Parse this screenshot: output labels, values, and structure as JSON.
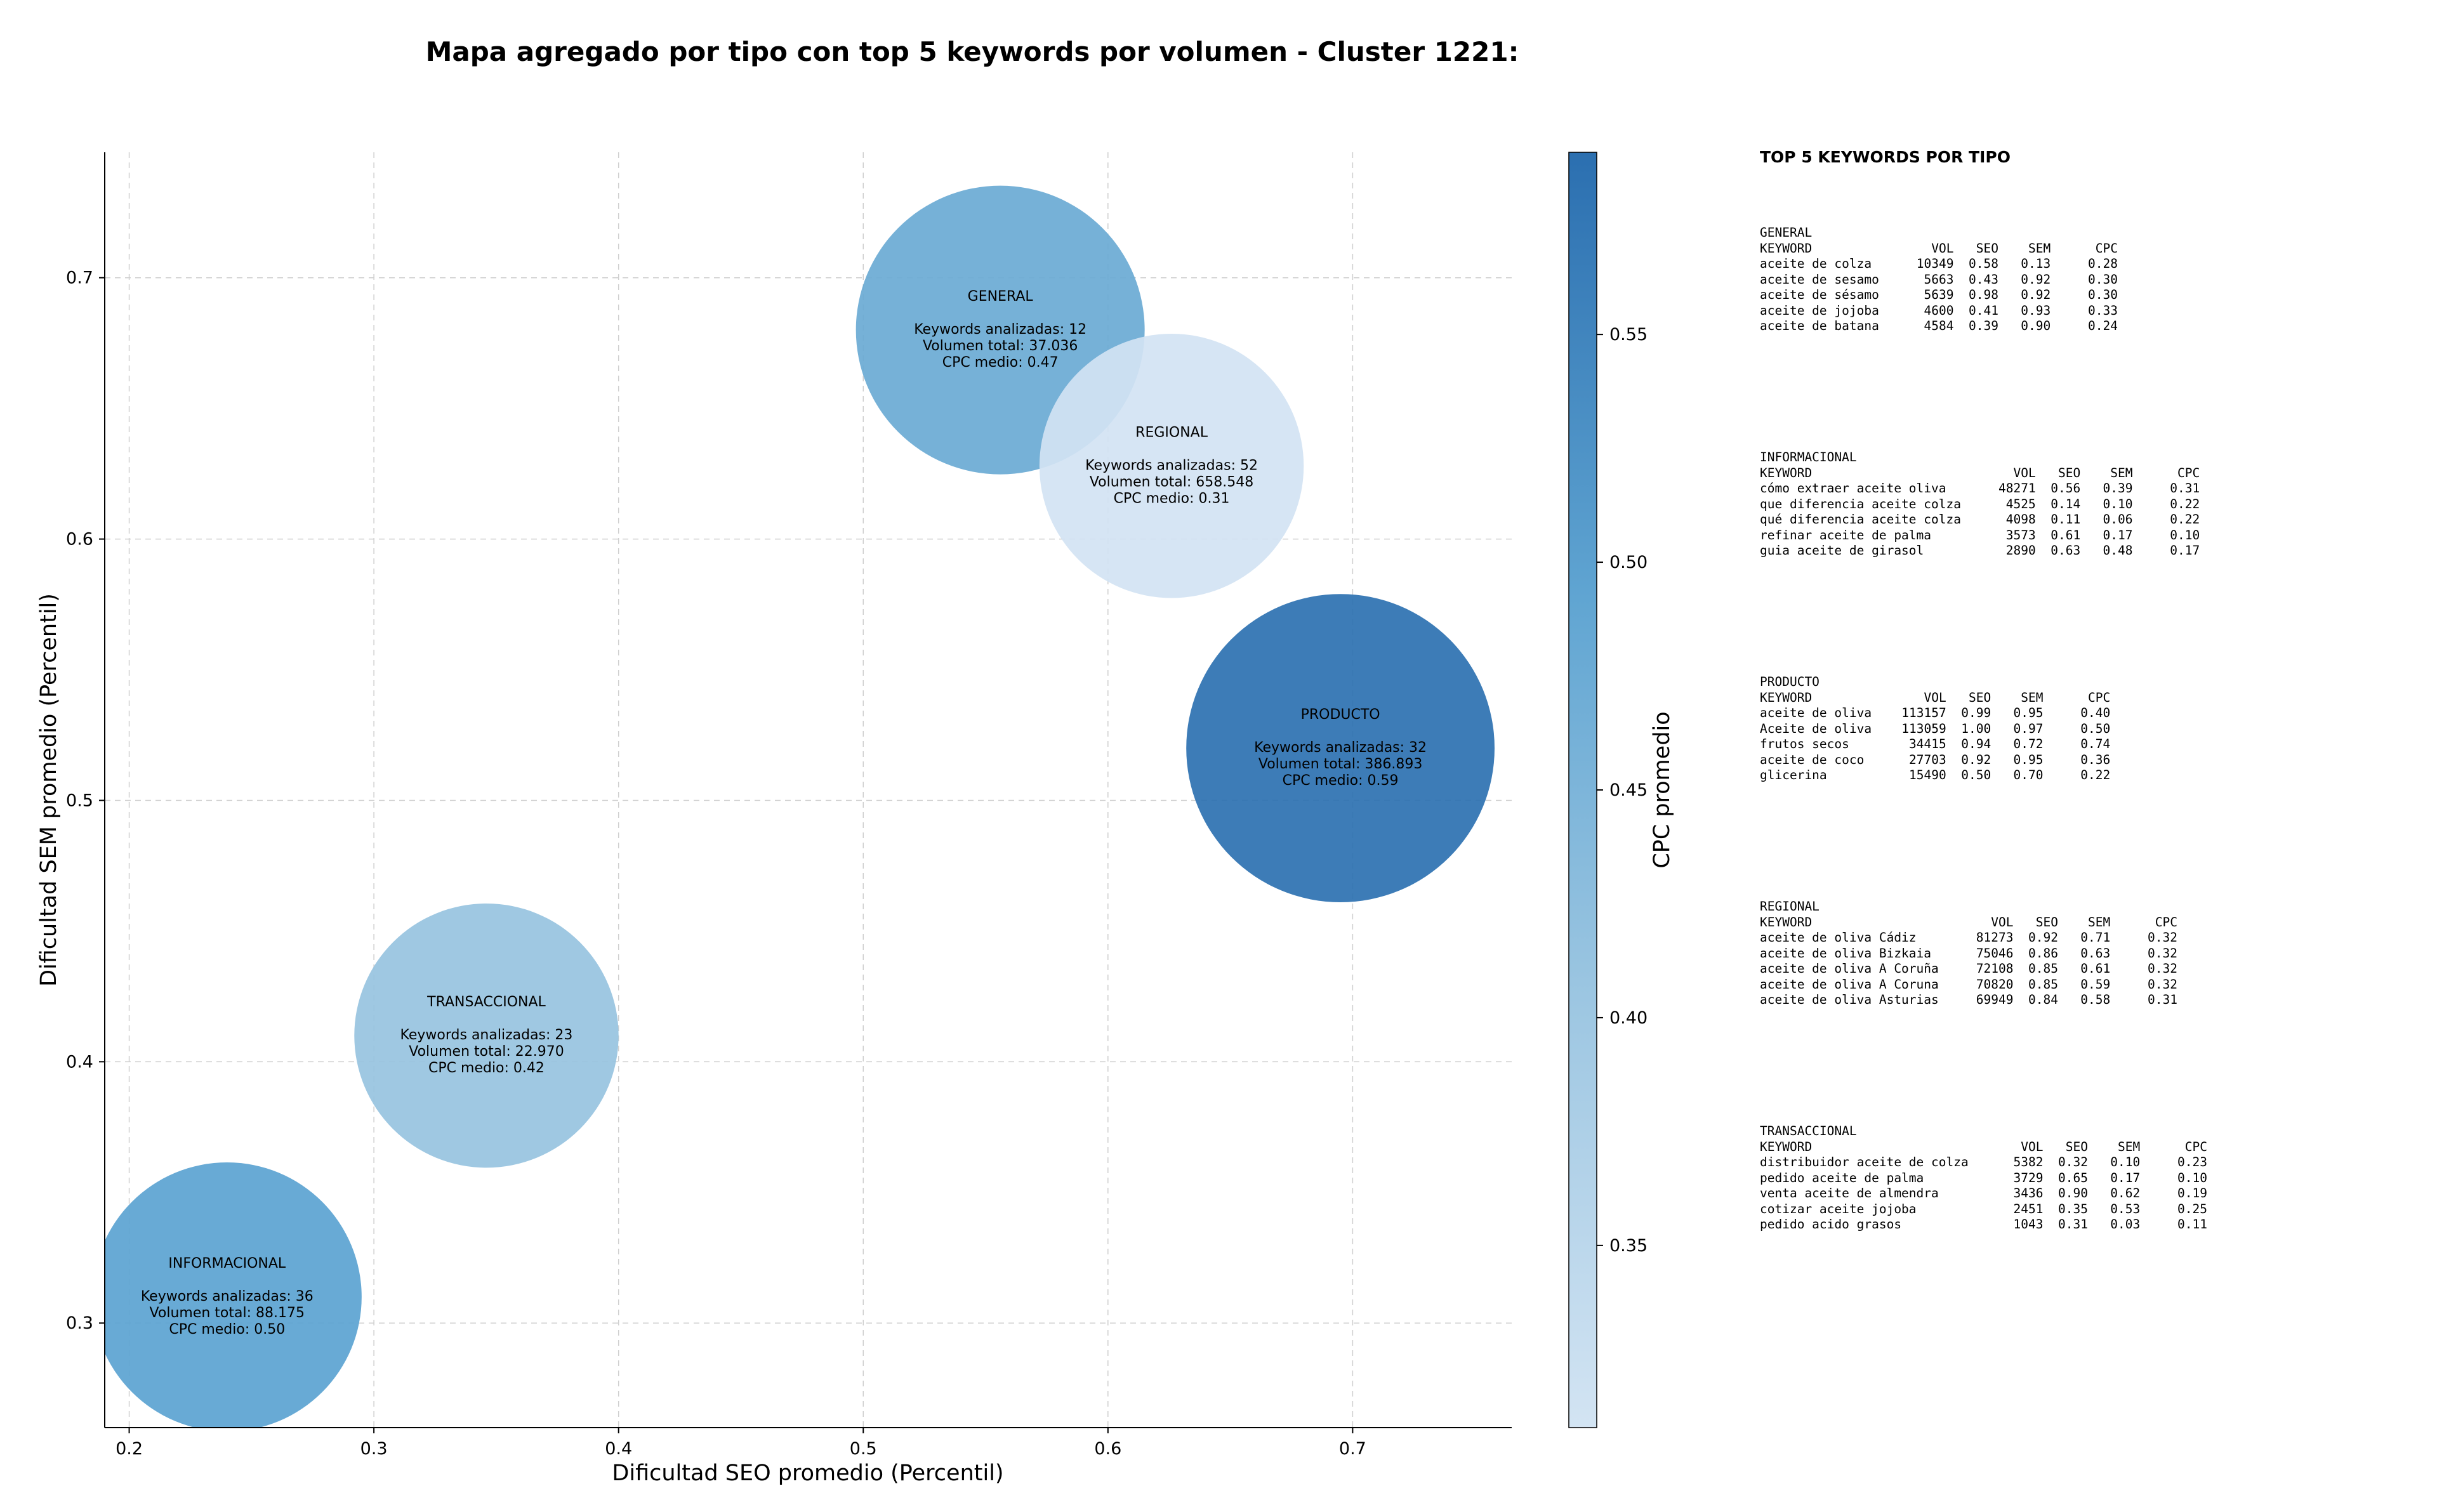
{
  "chart_data": {
    "type": "scatter",
    "title": "Mapa agregado por tipo con top 5 keywords por volumen - Cluster 1221:",
    "xlabel": "Dificultad SEO promedio (Percentil)",
    "ylabel": "Dificultad SEM promedio (Percentil)",
    "xlim": [
      0.19,
      0.765
    ],
    "ylim": [
      0.26,
      0.748
    ],
    "xticks": [
      "0.2",
      "0.3",
      "0.4",
      "0.5",
      "0.6",
      "0.7"
    ],
    "yticks": [
      "0.3",
      "0.4",
      "0.5",
      "0.6",
      "0.7"
    ],
    "grid": true,
    "colorbar": {
      "label": "CPC promedio",
      "range": [
        0.31,
        0.59
      ],
      "ticks": [
        "0.35",
        "0.40",
        "0.45",
        "0.50",
        "0.55"
      ],
      "color_low": "#d3e4f3",
      "color_high": "#2b6fb0"
    },
    "points": [
      {
        "label": "GENERAL",
        "x": 0.556,
        "y": 0.68,
        "radius_x": 0.059,
        "color": "#6aaad4",
        "lines": [
          "Keywords analizadas: 12",
          "Volumen total: 37.036",
          "CPC medio: 0.47"
        ]
      },
      {
        "label": "REGIONAL",
        "x": 0.626,
        "y": 0.628,
        "radius_x": 0.054,
        "color": "#d2e3f3",
        "lines": [
          "Keywords analizadas: 52",
          "Volumen total: 658.548",
          "CPC medio: 0.31"
        ]
      },
      {
        "label": "PRODUCTO",
        "x": 0.695,
        "y": 0.52,
        "radius_x": 0.063,
        "color": "#2d71b1",
        "lines": [
          "Keywords analizadas: 32",
          "Volumen total: 386.893",
          "CPC medio: 0.59"
        ]
      },
      {
        "label": "TRANSACCIONAL",
        "x": 0.346,
        "y": 0.41,
        "radius_x": 0.054,
        "color": "#97c3e0",
        "lines": [
          "Keywords analizadas: 23",
          "Volumen total: 22.970",
          "CPC medio: 0.42"
        ]
      },
      {
        "label": "INFORMACIONAL",
        "x": 0.24,
        "y": 0.31,
        "radius_x": 0.055,
        "color": "#5ba3d1",
        "lines": [
          "Keywords analizadas: 36",
          "Volumen total: 88.175",
          "CPC medio: 0.50"
        ]
      }
    ]
  },
  "panel": {
    "title": "TOP 5 KEYWORDS POR TIPO",
    "headers": [
      "KEYWORD",
      "VOL",
      "SEO",
      "SEM",
      "CPC"
    ],
    "groups": [
      {
        "name": "GENERAL",
        "rows": [
          [
            "aceite de colza",
            "10349",
            "0.58",
            "0.13",
            "0.28"
          ],
          [
            "aceite de sesamo",
            "5663",
            "0.43",
            "0.92",
            "0.30"
          ],
          [
            "aceite de sésamo",
            "5639",
            "0.98",
            "0.92",
            "0.30"
          ],
          [
            "aceite de jojoba",
            "4600",
            "0.41",
            "0.93",
            "0.33"
          ],
          [
            "aceite de batana",
            "4584",
            "0.39",
            "0.90",
            "0.24"
          ]
        ]
      },
      {
        "name": "INFORMACIONAL",
        "rows": [
          [
            "cómo extraer aceite oliva",
            "48271",
            "0.56",
            "0.39",
            "0.31"
          ],
          [
            "que diferencia aceite colza",
            "4525",
            "0.14",
            "0.10",
            "0.22"
          ],
          [
            "qué diferencia aceite colza",
            "4098",
            "0.11",
            "0.06",
            "0.22"
          ],
          [
            "refinar aceite de palma",
            "3573",
            "0.61",
            "0.17",
            "0.10"
          ],
          [
            "guia aceite de girasol",
            "2890",
            "0.63",
            "0.48",
            "0.17"
          ]
        ]
      },
      {
        "name": "PRODUCTO",
        "rows": [
          [
            "aceite de oliva",
            "113157",
            "0.99",
            "0.95",
            "0.40"
          ],
          [
            "Aceite de oliva",
            "113059",
            "1.00",
            "0.97",
            "0.50"
          ],
          [
            "frutos secos",
            "34415",
            "0.94",
            "0.72",
            "0.74"
          ],
          [
            "aceite de coco",
            "27703",
            "0.92",
            "0.95",
            "0.36"
          ],
          [
            "glicerina",
            "15490",
            "0.50",
            "0.70",
            "0.22"
          ]
        ]
      },
      {
        "name": "REGIONAL",
        "rows": [
          [
            "aceite de oliva Cádiz",
            "81273",
            "0.92",
            "0.71",
            "0.32"
          ],
          [
            "aceite de oliva Bizkaia",
            "75046",
            "0.86",
            "0.63",
            "0.32"
          ],
          [
            "aceite de oliva A Coruña",
            "72108",
            "0.85",
            "0.61",
            "0.32"
          ],
          [
            "aceite de oliva A Coruna",
            "70820",
            "0.85",
            "0.59",
            "0.32"
          ],
          [
            "aceite de oliva Asturias",
            "69949",
            "0.84",
            "0.58",
            "0.31"
          ]
        ]
      },
      {
        "name": "TRANSACCIONAL",
        "rows": [
          [
            "distribuidor aceite de colza",
            "5382",
            "0.32",
            "0.10",
            "0.23"
          ],
          [
            "pedido aceite de palma",
            "3729",
            "0.65",
            "0.17",
            "0.10"
          ],
          [
            "venta aceite de almendra",
            "3436",
            "0.90",
            "0.62",
            "0.19"
          ],
          [
            "cotizar aceite jojoba",
            "2451",
            "0.35",
            "0.53",
            "0.25"
          ],
          [
            "pedido acido grasos",
            "1043",
            "0.31",
            "0.03",
            "0.11"
          ]
        ]
      }
    ]
  }
}
